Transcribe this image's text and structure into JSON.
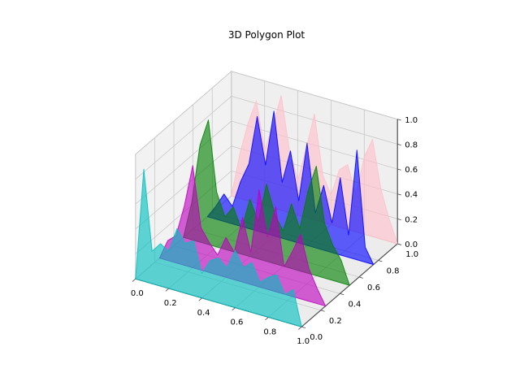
{
  "title": "3D Polygon Plot",
  "chart_data": {
    "type": "area",
    "subtype": "3d-polygon-collection",
    "title": "3D Polygon Plot",
    "xlabel": "",
    "ylabel": "",
    "zlabel": "",
    "view": {
      "elev": 30,
      "azim": -60,
      "z_box_aspect": 0.75
    },
    "grid": true,
    "alpha": 0.62,
    "axes": {
      "x_range": [
        0,
        1
      ],
      "y_range": [
        0,
        1
      ],
      "z_range": [
        0,
        1
      ],
      "x_tick_values": [
        0,
        0.2,
        0.4,
        0.6,
        0.8,
        1.0
      ],
      "x_tick_labels": [
        "0.0",
        "0.2",
        "0.4",
        "0.6",
        "0.8",
        "1.0"
      ],
      "y_tick_values": [
        0,
        0.2,
        0.4,
        0.6,
        0.8,
        1.0
      ],
      "y_tick_labels": [
        "0.0",
        "0.2",
        "0.4",
        "0.6",
        "0.8",
        "1.0"
      ],
      "z_tick_values": [
        0,
        0.2,
        0.4,
        0.6,
        0.8,
        1.0
      ],
      "z_tick_labels": [
        "0.0",
        "0.2",
        "0.4",
        "0.6",
        "0.8",
        "1.0"
      ]
    },
    "x": [
      0,
      0.05,
      0.1,
      0.15,
      0.2,
      0.25,
      0.3,
      0.35,
      0.4,
      0.45,
      0.5,
      0.55,
      0.6,
      0.65,
      0.7,
      0.75,
      0.8,
      0.85,
      0.9,
      0.95,
      1.0
    ],
    "series": [
      {
        "name": "pink-polygon",
        "plane_y": 1.0,
        "color": "#ffc0cb",
        "values": [
          0,
          0.35,
          0.62,
          0.82,
          0.45,
          0.66,
          0.92,
          0.5,
          0.28,
          0.55,
          0.85,
          0.38,
          0.24,
          0.46,
          0.52,
          0.3,
          0.62,
          0.78,
          0.4,
          0.18,
          0
        ]
      },
      {
        "name": "blue-polygon",
        "plane_y": 0.75,
        "color": "#0000ff",
        "values": [
          0,
          0.1,
          0.22,
          0.14,
          0.36,
          0.52,
          0.92,
          0.55,
          1.0,
          0.45,
          0.72,
          0.34,
          0.82,
          0.28,
          0.52,
          0.24,
          0.62,
          0.18,
          0.88,
          0.12,
          0
        ]
      },
      {
        "name": "green-polygon",
        "plane_y": 0.5,
        "color": "#008000",
        "values": [
          0,
          0.3,
          0.78,
          1.0,
          0.44,
          0.26,
          0.36,
          0.2,
          0.46,
          0.3,
          0.62,
          0.4,
          0.28,
          0.52,
          0.34,
          0.66,
          0.88,
          0.44,
          0.28,
          0.18,
          0
        ]
      },
      {
        "name": "magenta-polygon",
        "plane_y": 0.25,
        "color": "#bf00bf",
        "values": [
          0,
          0.16,
          0.22,
          0.48,
          0.82,
          0.34,
          0.24,
          0.16,
          0.32,
          0.22,
          0.52,
          0.26,
          0.78,
          0.42,
          0.68,
          0.22,
          0.36,
          0.52,
          0.26,
          0.12,
          0
        ]
      },
      {
        "name": "cyan-polygon",
        "plane_y": 0.0,
        "color": "#00bfbf",
        "values": [
          0,
          0.9,
          0.26,
          0.34,
          0.3,
          0.5,
          0.4,
          0.44,
          0.2,
          0.32,
          0.36,
          0.3,
          0.46,
          0.34,
          0.4,
          0.26,
          0.32,
          0.36,
          0.22,
          0.28,
          0
        ]
      }
    ],
    "colors": {
      "pane_floor": "#ececec",
      "pane_left": "#f2f2f2",
      "pane_right": "#efefef",
      "grid_line": "#c6c6c6",
      "pane_edge": "#d2d2d2",
      "axis_line": "#4a4a4a",
      "tick_label": "#000000",
      "background": "#ffffff"
    }
  }
}
